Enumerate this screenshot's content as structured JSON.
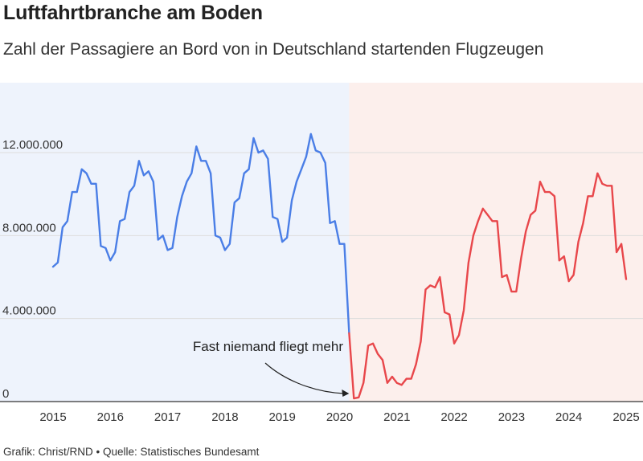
{
  "title": "Luftfahrtbranche am Boden",
  "subtitle": "Zahl der Passagiere an Bord von in Deutschland startenden Flugzeugen",
  "source": "Grafik: Christ/RND • Quelle: Statistisches Bundesamt",
  "colors": {
    "pre_pandemic_line": "#4a7ee6",
    "pandemic_line": "#e8474b",
    "pre_pandemic_bg": "#eef3fc",
    "pandemic_bg": "#fcefec",
    "grid": "#dddddd",
    "axis": "#333333"
  },
  "chart_data": {
    "type": "line",
    "title": "Luftfahrtbranche am Boden",
    "subtitle": "Zahl der Passagiere an Bord von in Deutschland startenden Flugzeugen",
    "xlabel": "",
    "ylabel": "",
    "xlim": [
      2015,
      2025
    ],
    "ylim": [
      0,
      15000000
    ],
    "y_ticks": [
      {
        "value": 0,
        "label": "0"
      },
      {
        "value": 4000000,
        "label": "4.000.000"
      },
      {
        "value": 8000000,
        "label": "8.000.000"
      },
      {
        "value": 12000000,
        "label": "12.000.000"
      }
    ],
    "x_ticks": [
      {
        "value": 2015,
        "label": "2015"
      },
      {
        "value": 2016,
        "label": "2016"
      },
      {
        "value": 2017,
        "label": "2017"
      },
      {
        "value": 2018,
        "label": "2018"
      },
      {
        "value": 2019,
        "label": "2019"
      },
      {
        "value": 2020,
        "label": "2020"
      },
      {
        "value": 2021,
        "label": "2021"
      },
      {
        "value": 2022,
        "label": "2022"
      },
      {
        "value": 2023,
        "label": "2023"
      },
      {
        "value": 2024,
        "label": "2024"
      },
      {
        "value": 2025,
        "label": "2025"
      }
    ],
    "grid": true,
    "legend": "none",
    "start": "2015-01",
    "frequency": "monthly",
    "background_regions": [
      {
        "from": "2015-01",
        "to": "2020-03",
        "color_key": "pre_pandemic_bg"
      },
      {
        "from": "2020-03",
        "to": "2025-12",
        "color_key": "pandemic_bg"
      }
    ],
    "annotation": {
      "text": "Fast niemand fliegt mehr",
      "target": "2020-04"
    },
    "series": [
      {
        "color_key": "pre_pandemic_line",
        "start": "2015-01",
        "values": [
          6500000,
          6700000,
          8400000,
          8700000,
          10100000,
          10100000,
          11200000,
          11000000,
          10500000,
          10500000,
          7500000,
          7400000,
          6800000,
          7200000,
          8700000,
          8800000,
          10100000,
          10400000,
          11600000,
          10900000,
          11100000,
          10600000,
          7800000,
          8000000,
          7300000,
          7400000,
          8900000,
          9900000,
          10600000,
          11000000,
          12300000,
          11600000,
          11600000,
          11000000,
          8000000,
          7900000,
          7300000,
          7600000,
          9600000,
          9800000,
          11000000,
          11200000,
          12700000,
          12000000,
          12100000,
          11700000,
          8900000,
          8800000,
          7700000,
          7900000,
          9700000,
          10600000,
          11200000,
          11800000,
          12900000,
          12100000,
          12000000,
          11500000,
          8600000,
          8700000,
          7600000,
          7600000,
          3300000
        ]
      },
      {
        "color_key": "pandemic_line",
        "start": "2020-03",
        "values": [
          3300000,
          150000,
          200000,
          900000,
          2700000,
          2800000,
          2300000,
          2000000,
          900000,
          1200000,
          900000,
          800000,
          1100000,
          1100000,
          1800000,
          2900000,
          5400000,
          5600000,
          5500000,
          6000000,
          4300000,
          4200000,
          2800000,
          3200000,
          4400000,
          6700000,
          8000000,
          8700000,
          9300000,
          9000000,
          8700000,
          8700000,
          6000000,
          6100000,
          5300000,
          5300000,
          6900000,
          8200000,
          9000000,
          9200000,
          10600000,
          10100000,
          10100000,
          9900000,
          6800000,
          7000000,
          5800000,
          6100000,
          7700000,
          8600000,
          9900000,
          9900000,
          11000000,
          10500000,
          10400000,
          10400000,
          7200000,
          7600000,
          5900000
        ]
      }
    ]
  }
}
